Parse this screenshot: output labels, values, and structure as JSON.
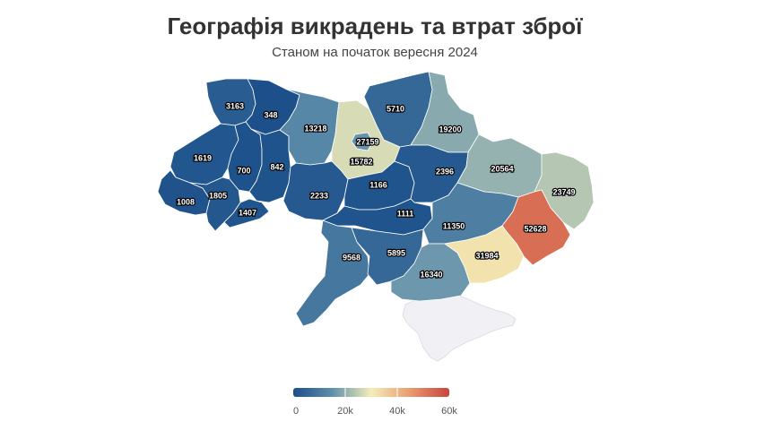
{
  "title": "Географія викрадень та втрат зброї",
  "subtitle": "Станом на початок вересня 2024",
  "colors": {
    "low": "#1b4f8a",
    "mid": "#f3eeb8",
    "high": "#c8443b",
    "crimea": "#f1f1f5"
  },
  "legend": {
    "min": 0,
    "max": 60000,
    "ticks": [
      "0",
      "20k",
      "40k",
      "60k"
    ],
    "tick_values": [
      0,
      20000,
      40000,
      60000
    ]
  },
  "chart_data": {
    "type": "choropleth",
    "regions": [
      {
        "id": "volyn",
        "value": 3163
      },
      {
        "id": "rivne",
        "value": 348
      },
      {
        "id": "lviv",
        "value": 1619
      },
      {
        "id": "ternopil",
        "value": 700
      },
      {
        "id": "khmelnytskyi",
        "value": 842
      },
      {
        "id": "zakarpattia",
        "value": 1008
      },
      {
        "id": "ivano-frankivsk",
        "value": 1805
      },
      {
        "id": "chernivtsi",
        "value": 1407
      },
      {
        "id": "zhytomyr",
        "value": 13218
      },
      {
        "id": "kyiv-oblast",
        "value": 27159
      },
      {
        "id": "kyiv-city",
        "value": 15782
      },
      {
        "id": "chernihiv",
        "value": 5710
      },
      {
        "id": "sumy",
        "value": 19200
      },
      {
        "id": "vinnytsia",
        "value": 2233
      },
      {
        "id": "cherkasy",
        "value": 1166
      },
      {
        "id": "poltava",
        "value": 2396
      },
      {
        "id": "kharkiv",
        "value": 20564
      },
      {
        "id": "luhansk",
        "value": 23749
      },
      {
        "id": "kirovohrad",
        "value": 1111
      },
      {
        "id": "dnipropetrovsk",
        "value": 11350
      },
      {
        "id": "donetsk",
        "value": 52628
      },
      {
        "id": "odesa",
        "value": 9568
      },
      {
        "id": "mykolaiv",
        "value": 5895
      },
      {
        "id": "kherson",
        "value": 16340
      },
      {
        "id": "zaporizhzhia",
        "value": 31984
      }
    ]
  }
}
